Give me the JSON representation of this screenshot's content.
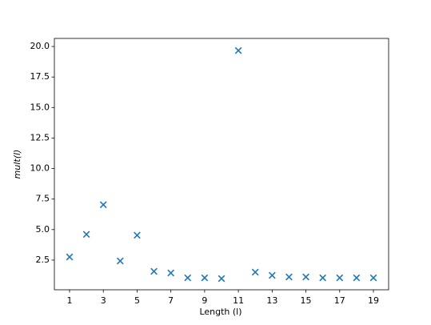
{
  "chart_data": {
    "type": "scatter",
    "x_label": "Length (l)",
    "y_label": "mult(l)",
    "x": [
      1,
      2,
      3,
      4,
      5,
      6,
      7,
      8,
      9,
      10,
      11,
      12,
      13,
      14,
      15,
      16,
      17,
      18,
      19
    ],
    "series": [
      {
        "color": "#1f77b4",
        "values": [
          2.76,
          4.61,
          7.04,
          2.43,
          4.54,
          1.58,
          1.45,
          1.05,
          1.05,
          0.99,
          19.67,
          1.51,
          1.25,
          1.12,
          1.12,
          1.05,
          1.05,
          1.05,
          1.05
        ]
      }
    ],
    "xlim": [
      0.1,
      19.9
    ],
    "ylim": [
      0.07,
      20.66
    ],
    "xticks": [
      1,
      3,
      5,
      7,
      9,
      11,
      13,
      15,
      17,
      19
    ],
    "yticks": [
      2.5,
      {
        "value": 5,
        "label": "5.0"
      },
      7.5,
      {
        "value": 10,
        "label": "10.0"
      },
      12.5,
      {
        "value": 15,
        "label": "15.0"
      },
      17.5,
      {
        "value": 20,
        "label": "20.0"
      }
    ]
  }
}
